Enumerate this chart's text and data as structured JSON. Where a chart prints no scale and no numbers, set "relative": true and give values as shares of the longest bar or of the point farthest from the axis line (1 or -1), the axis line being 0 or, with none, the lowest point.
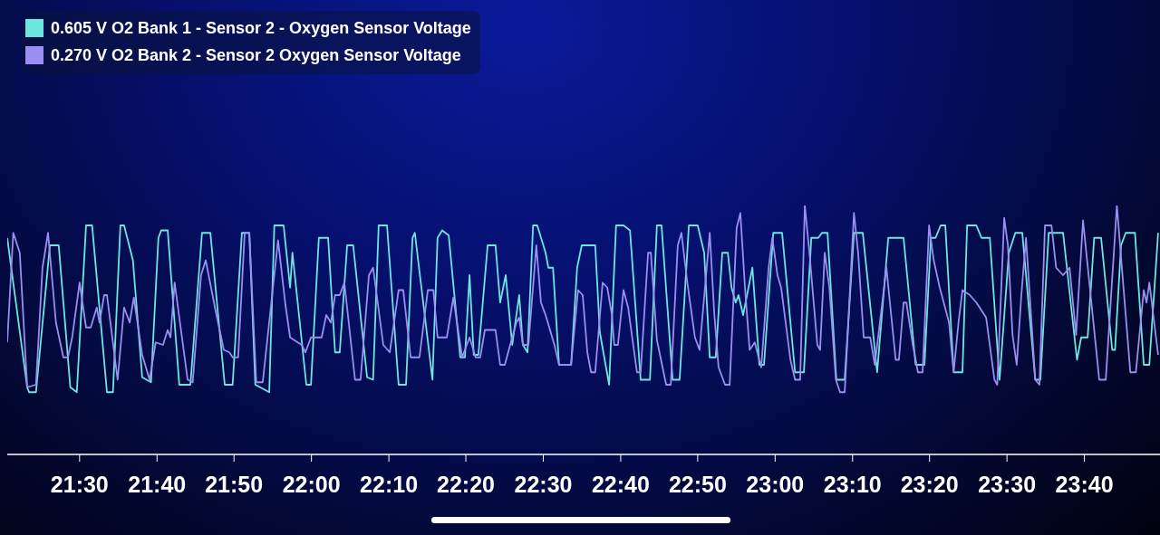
{
  "chart_data": {
    "type": "line",
    "relative": true,
    "legend": "top left",
    "marker": "none",
    "line_style": "solid",
    "xlim": [
      21.344,
      23.83
    ],
    "xticks": [
      {
        "value": 21.5,
        "label": "21:30"
      },
      {
        "value": 21.667,
        "label": "21:40"
      },
      {
        "value": 21.833,
        "label": "21:50"
      },
      {
        "value": 22,
        "label": "22:00"
      },
      {
        "value": 22.167,
        "label": "22:10"
      },
      {
        "value": 22.333,
        "label": "22:20"
      },
      {
        "value": 22.5,
        "label": "22:30"
      },
      {
        "value": 22.667,
        "label": "22:40"
      },
      {
        "value": 22.833,
        "label": "22:50"
      },
      {
        "value": 23,
        "label": "23:00"
      },
      {
        "value": 23.167,
        "label": "23:10"
      },
      {
        "value": 23.333,
        "label": "23:20"
      },
      {
        "value": 23.5,
        "label": "23:30"
      },
      {
        "value": 23.667,
        "label": "23:40"
      }
    ],
    "series": [
      {
        "name": "0.605 V O2 Bank 1 - Sensor 2 - Oxygen Sensor Voltage",
        "color": "#6ee6e0",
        "x": [
          21.344,
          21.387,
          21.391,
          21.406,
          21.436,
          21.455,
          21.48,
          21.494,
          21.514,
          21.527,
          21.559,
          21.572,
          21.588,
          21.596,
          21.615,
          21.635,
          21.654,
          21.67,
          21.676,
          21.69,
          21.715,
          21.739,
          21.764,
          21.782,
          21.813,
          21.83,
          21.85,
          21.866,
          21.879,
          21.909,
          21.92,
          21.94,
          21.954,
          21.959,
          21.989,
          21.999,
          22.016,
          22.036,
          22.051,
          22.061,
          22.077,
          22.09,
          22.12,
          22.133,
          22.145,
          22.163,
          22.188,
          22.204,
          22.218,
          22.223,
          22.261,
          22.272,
          22.282,
          22.296,
          22.321,
          22.331,
          22.341,
          22.35,
          22.36,
          22.38,
          22.397,
          22.407,
          22.419,
          22.433,
          22.448,
          22.456,
          22.466,
          22.478,
          22.487,
          22.505,
          22.511,
          22.521,
          22.534,
          22.56,
          22.573,
          22.583,
          22.612,
          22.622,
          22.642,
          22.657,
          22.673,
          22.687,
          22.71,
          22.73,
          22.745,
          22.755,
          22.779,
          22.794,
          22.814,
          22.833,
          22.847,
          22.859,
          22.872,
          22.886,
          22.898,
          22.906,
          22.915,
          22.921,
          22.931,
          22.951,
          22.966,
          22.976,
          22.996,
          23.015,
          23.043,
          23.062,
          23.078,
          23.093,
          23.101,
          23.113,
          23.132,
          23.15,
          23.17,
          23.189,
          23.22,
          23.244,
          23.277,
          23.303,
          23.322,
          23.336,
          23.346,
          23.357,
          23.367,
          23.385,
          23.404,
          23.414,
          23.434,
          23.445,
          23.463,
          23.484,
          23.504,
          23.518,
          23.533,
          23.561,
          23.572,
          23.59,
          23.621,
          23.651,
          23.66,
          23.674,
          23.688,
          23.703,
          23.727,
          23.733,
          23.746,
          23.756,
          23.776,
          23.795,
          23.807,
          23.826
        ],
        "values": [
          0.87,
          0.27,
          0.25,
          0.25,
          0.84,
          0.84,
          0.27,
          0.25,
          0.92,
          0.92,
          0.25,
          0.25,
          0.92,
          0.92,
          0.78,
          0.31,
          0.29,
          0.87,
          0.9,
          0.9,
          0.28,
          0.28,
          0.89,
          0.89,
          0.28,
          0.28,
          0.89,
          0.89,
          0.28,
          0.25,
          0.92,
          0.92,
          0.67,
          0.81,
          0.28,
          0.28,
          0.87,
          0.87,
          0.41,
          0.41,
          0.84,
          0.84,
          0.31,
          0.3,
          0.92,
          0.92,
          0.28,
          0.28,
          0.87,
          0.89,
          0.3,
          0.87,
          0.9,
          0.88,
          0.39,
          0.39,
          0.72,
          0.4,
          0.4,
          0.84,
          0.84,
          0.61,
          0.72,
          0.44,
          0.64,
          0.44,
          0.41,
          0.92,
          0.92,
          0.81,
          0.75,
          0.75,
          0.36,
          0.36,
          0.75,
          0.84,
          0.84,
          0.49,
          0.28,
          0.92,
          0.92,
          0.9,
          0.3,
          0.3,
          0.92,
          0.92,
          0.3,
          0.3,
          0.92,
          0.92,
          0.81,
          0.39,
          0.39,
          0.81,
          0.81,
          0.67,
          0.61,
          0.64,
          0.56,
          0.75,
          0.36,
          0.36,
          0.89,
          0.89,
          0.33,
          0.33,
          0.87,
          0.87,
          0.89,
          0.89,
          0.3,
          0.3,
          0.89,
          0.89,
          0.33,
          0.87,
          0.87,
          0.36,
          0.36,
          0.87,
          0.87,
          0.92,
          0.92,
          0.33,
          0.33,
          0.92,
          0.92,
          0.87,
          0.87,
          0.3,
          0.81,
          0.89,
          0.89,
          0.3,
          0.3,
          0.89,
          0.89,
          0.38,
          0.47,
          0.47,
          0.87,
          0.87,
          0.42,
          0.42,
          0.84,
          0.89,
          0.89,
          0.36,
          0.36,
          0.89
        ]
      },
      {
        "name": "0.270 V O2 Bank 2 - Sensor 2 Oxygen Sensor Voltage",
        "color": "#9a8ff0",
        "x": [
          21.344,
          21.357,
          21.371,
          21.387,
          21.406,
          21.42,
          21.432,
          21.449,
          21.465,
          21.475,
          21.484,
          21.5,
          21.514,
          21.524,
          21.537,
          21.543,
          21.553,
          21.559,
          21.582,
          21.596,
          21.608,
          21.617,
          21.635,
          21.651,
          21.664,
          21.68,
          21.69,
          21.696,
          21.705,
          21.733,
          21.744,
          21.762,
          21.772,
          21.793,
          21.811,
          21.823,
          21.83,
          21.842,
          21.856,
          21.866,
          21.881,
          21.895,
          21.928,
          21.944,
          21.954,
          21.979,
          21.987,
          21.999,
          22.022,
          22.032,
          22.042,
          22.051,
          22.061,
          22.071,
          22.094,
          22.106,
          22.124,
          22.133,
          22.155,
          22.169,
          22.188,
          22.198,
          22.214,
          22.233,
          22.251,
          22.263,
          22.272,
          22.292,
          22.306,
          22.325,
          22.341,
          22.354,
          22.364,
          22.374,
          22.397,
          22.407,
          22.417,
          22.433,
          22.442,
          22.448,
          22.456,
          22.468,
          22.485,
          22.495,
          22.505,
          22.524,
          22.534,
          22.56,
          22.575,
          22.585,
          22.595,
          22.603,
          22.612,
          22.628,
          22.638,
          22.648,
          22.653,
          22.661,
          22.673,
          22.683,
          22.702,
          22.71,
          22.726,
          22.732,
          22.745,
          22.765,
          22.775,
          22.79,
          22.798,
          22.81,
          22.827,
          22.837,
          22.859,
          22.869,
          22.878,
          22.892,
          22.902,
          22.917,
          22.925,
          22.935,
          22.945,
          22.956,
          22.97,
          22.986,
          22.994,
          23.005,
          23.013,
          23.033,
          23.043,
          23.054,
          23.064,
          23.074,
          23.091,
          23.097,
          23.107,
          23.117,
          23.131,
          23.14,
          23.15,
          23.17,
          23.179,
          23.191,
          23.205,
          23.215,
          23.24,
          23.26,
          23.267,
          23.277,
          23.283,
          23.297,
          23.308,
          23.318,
          23.332,
          23.342,
          23.355,
          23.375,
          23.385,
          23.396,
          23.404,
          23.42,
          23.434,
          23.455,
          23.473,
          23.479,
          23.494,
          23.502,
          23.512,
          23.521,
          23.531,
          23.541,
          23.561,
          23.57,
          23.582,
          23.596,
          23.606,
          23.621,
          23.635,
          23.649,
          23.664,
          23.699,
          23.713,
          23.737,
          23.766,
          23.778,
          23.795,
          23.801,
          23.807,
          23.826
        ],
        "values": [
          0.45,
          0.89,
          0.81,
          0.27,
          0.28,
          0.75,
          0.89,
          0.53,
          0.39,
          0.39,
          0.47,
          0.69,
          0.51,
          0.51,
          0.59,
          0.53,
          0.64,
          0.64,
          0.3,
          0.59,
          0.53,
          0.63,
          0.4,
          0.3,
          0.45,
          0.44,
          0.5,
          0.47,
          0.69,
          0.3,
          0.29,
          0.72,
          0.78,
          0.58,
          0.42,
          0.41,
          0.39,
          0.39,
          0.89,
          0.89,
          0.29,
          0.29,
          0.86,
          0.6,
          0.47,
          0.44,
          0.41,
          0.47,
          0.47,
          0.56,
          0.53,
          0.64,
          0.64,
          0.69,
          0.3,
          0.3,
          0.72,
          0.75,
          0.44,
          0.41,
          0.66,
          0.66,
          0.39,
          0.39,
          0.66,
          0.66,
          0.47,
          0.47,
          0.63,
          0.39,
          0.47,
          0.39,
          0.39,
          0.5,
          0.5,
          0.36,
          0.36,
          0.47,
          0.53,
          0.55,
          0.44,
          0.44,
          0.84,
          0.61,
          0.56,
          0.44,
          0.36,
          0.36,
          0.66,
          0.64,
          0.41,
          0.33,
          0.33,
          0.69,
          0.67,
          0.56,
          0.44,
          0.44,
          0.66,
          0.59,
          0.33,
          0.33,
          0.81,
          0.81,
          0.46,
          0.28,
          0.28,
          0.84,
          0.89,
          0.7,
          0.47,
          0.42,
          0.89,
          0.56,
          0.35,
          0.28,
          0.28,
          0.91,
          0.97,
          0.67,
          0.42,
          0.45,
          0.35,
          0.75,
          0.87,
          0.72,
          0.67,
          0.38,
          0.3,
          0.3,
          1.0,
          0.81,
          0.44,
          0.42,
          0.81,
          0.67,
          0.3,
          0.25,
          0.25,
          0.97,
          0.81,
          0.47,
          0.47,
          0.36,
          0.75,
          0.38,
          0.38,
          0.61,
          0.61,
          0.44,
          0.33,
          0.33,
          0.92,
          0.78,
          0.67,
          0.53,
          0.33,
          0.54,
          0.66,
          0.64,
          0.61,
          0.55,
          0.3,
          0.28,
          0.95,
          0.84,
          0.48,
          0.36,
          0.64,
          0.87,
          0.3,
          0.28,
          0.92,
          0.92,
          0.75,
          0.72,
          0.75,
          0.48,
          0.94,
          0.3,
          0.3,
          1.0,
          0.33,
          0.33,
          0.66,
          0.61,
          0.69,
          0.4
        ]
      }
    ]
  }
}
